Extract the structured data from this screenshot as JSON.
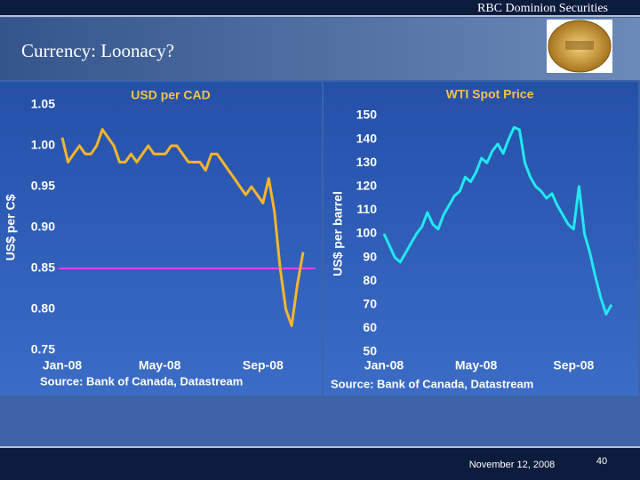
{
  "header": "RBC Dominion Securities",
  "title": "Currency: Loonacy?",
  "footer": {
    "date": "November 12, 2008",
    "page": 40
  },
  "chart_data": [
    {
      "type": "line",
      "title": "USD per CAD",
      "ylabel": "US$ per C$",
      "source": "Source: Bank of Canada, Datastream",
      "categories": [
        "Jan-08",
        null,
        null,
        null,
        null,
        null,
        null,
        null,
        null,
        null,
        null,
        null,
        null,
        null,
        null,
        null,
        null,
        "May-08",
        null,
        null,
        null,
        null,
        null,
        null,
        null,
        null,
        null,
        null,
        null,
        null,
        null,
        null,
        null,
        null,
        null,
        "Sep-08",
        null,
        null,
        null,
        null,
        null,
        null,
        null
      ],
      "series": [
        {
          "name": "USD per CAD",
          "color": "#f7b52c",
          "values": [
            1.01,
            0.98,
            0.99,
            1.0,
            0.99,
            0.99,
            1.0,
            1.02,
            1.01,
            1.0,
            0.98,
            0.98,
            0.99,
            0.98,
            0.99,
            1.0,
            0.99,
            0.99,
            0.99,
            1.0,
            1.0,
            0.99,
            0.98,
            0.98,
            0.98,
            0.97,
            0.99,
            0.99,
            0.98,
            0.97,
            0.96,
            0.95,
            0.94,
            0.95,
            0.94,
            0.93,
            0.96,
            0.92,
            0.85,
            0.8,
            0.78,
            0.83,
            0.87
          ]
        }
      ],
      "reference_line": {
        "value": 0.85,
        "color": "#e040fb"
      },
      "ylim": [
        0.75,
        1.05
      ],
      "yticks": [
        0.75,
        {
          "value": 0.8,
          "label": "0.80"
        },
        0.85,
        {
          "value": 0.9,
          "label": "0.90"
        },
        0.95,
        {
          "value": 1.0,
          "label": "1.00"
        },
        1.05
      ]
    },
    {
      "type": "line",
      "title": "WTI Spot Price",
      "ylabel": "US$ per barrel",
      "source": "Source: Bank of Canada, Datastream",
      "categories": [
        "Jan-08",
        null,
        null,
        null,
        null,
        null,
        null,
        null,
        null,
        null,
        null,
        null,
        null,
        null,
        null,
        null,
        null,
        "May-08",
        null,
        null,
        null,
        null,
        null,
        null,
        null,
        null,
        null,
        null,
        null,
        null,
        null,
        null,
        null,
        null,
        null,
        "Sep-08",
        null,
        null,
        null,
        null,
        null,
        null,
        null
      ],
      "series": [
        {
          "name": "WTI Spot Price",
          "color": "#22e8f0",
          "values": [
            100,
            95,
            90,
            88,
            92,
            96,
            100,
            103,
            109,
            104,
            102,
            108,
            112,
            116,
            118,
            124,
            122,
            126,
            132,
            130,
            135,
            138,
            134,
            140,
            145,
            144,
            130,
            124,
            120,
            118,
            115,
            117,
            112,
            108,
            104,
            102,
            120,
            100,
            92,
            82,
            73,
            66,
            70
          ]
        }
      ],
      "ylim": [
        50,
        150
      ],
      "yticks": [
        50,
        60,
        70,
        80,
        90,
        100,
        110,
        120,
        130,
        140,
        150
      ]
    }
  ]
}
